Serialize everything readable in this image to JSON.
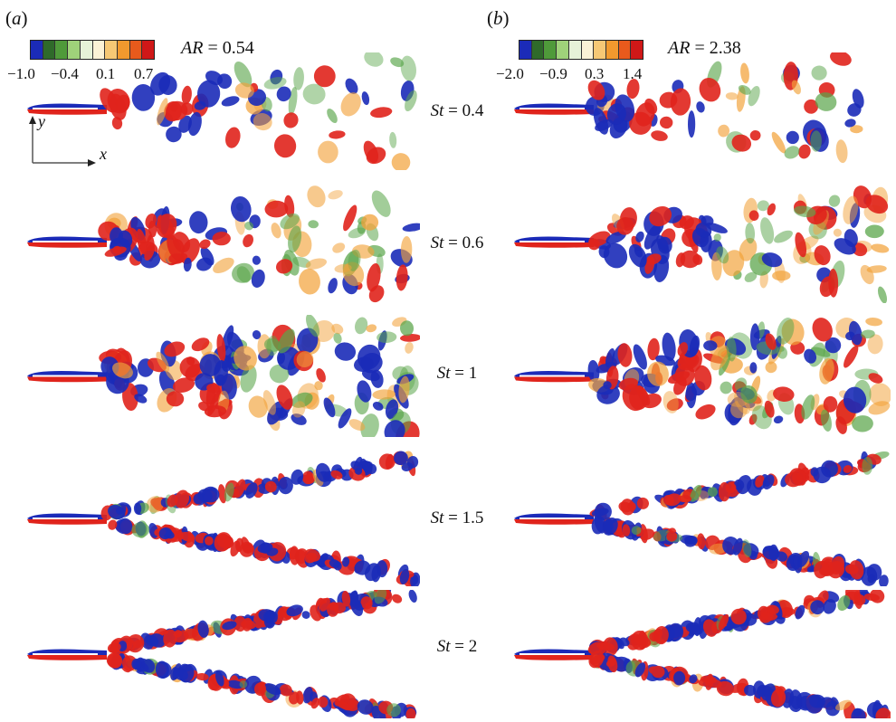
{
  "panels": [
    {
      "label": "a",
      "ar_value": "0.54",
      "ticks": [
        "−1.0",
        "−0.4",
        "0.1",
        "0.7"
      ]
    },
    {
      "label": "b",
      "ar_value": "2.38",
      "ticks": [
        "−2.0",
        "−0.9",
        "0.3",
        "1.4"
      ]
    }
  ],
  "ar_symbol": "AR",
  "st_symbol": "St",
  "st_values": [
    "0.4",
    "0.6",
    "1",
    "1.5",
    "2"
  ],
  "axes": {
    "x": "x",
    "y": "y"
  },
  "colorbar_colors": [
    "#1b2bb8",
    "#2f6a2a",
    "#4f9a3a",
    "#9fd27a",
    "#e6f2d8",
    "#fbf2d6",
    "#f6c875",
    "#f1992e",
    "#e85a1c",
    "#d01818"
  ],
  "colors": {
    "negative": "#1b2bb8",
    "positive": "#e0241c",
    "green": "#5aa54a",
    "orange": "#f2a23a"
  }
}
